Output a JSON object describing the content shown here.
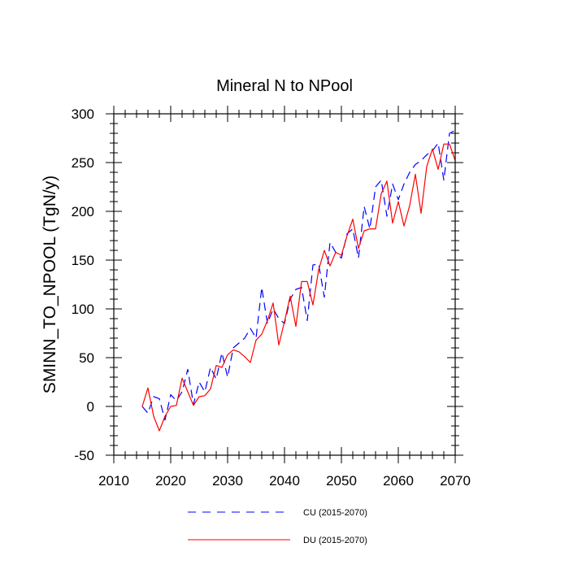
{
  "chart_data": {
    "type": "line",
    "title": "Mineral N to NPool",
    "xlabel": "",
    "ylabel": "SMINN_TO_NPOOL  (TgN/y)",
    "xlim": [
      2010,
      2070
    ],
    "ylim": [
      -50,
      300
    ],
    "xticks": [
      2010,
      2020,
      2030,
      2040,
      2050,
      2060,
      2070
    ],
    "yticks": [
      -50,
      0,
      50,
      100,
      150,
      200,
      250,
      300
    ],
    "grid": false,
    "legend": "bottom",
    "x": [
      2015,
      2016,
      2017,
      2018,
      2019,
      2020,
      2021,
      2022,
      2023,
      2024,
      2025,
      2026,
      2027,
      2028,
      2029,
      2030,
      2031,
      2032,
      2033,
      2034,
      2035,
      2036,
      2037,
      2038,
      2039,
      2040,
      2041,
      2042,
      2043,
      2044,
      2045,
      2046,
      2047,
      2048,
      2049,
      2050,
      2051,
      2052,
      2053,
      2054,
      2055,
      2056,
      2057,
      2058,
      2059,
      2060,
      2061,
      2062,
      2063,
      2064,
      2065,
      2066,
      2067,
      2068,
      2069,
      2070
    ],
    "series": [
      {
        "name": "CU (2015-2070)",
        "color": "#0000ff",
        "dash": "dashed",
        "values": [
          0,
          -7,
          10,
          8,
          -14,
          12,
          6,
          15,
          38,
          2,
          25,
          15,
          40,
          28,
          55,
          30,
          60,
          65,
          70,
          80,
          70,
          122,
          85,
          100,
          90,
          85,
          110,
          120,
          122,
          88,
          145,
          146,
          112,
          168,
          158,
          152,
          177,
          182,
          152,
          205,
          182,
          225,
          232,
          195,
          228,
          212,
          228,
          240,
          248,
          252,
          258,
          262,
          270,
          232,
          280,
          283
        ]
      },
      {
        "name": "DU (2015-2070)",
        "color": "#ff0000",
        "dash": "solid",
        "values": [
          0,
          19,
          -10,
          -25,
          -10,
          0,
          1,
          29,
          15,
          1,
          10,
          11,
          18,
          42,
          40,
          53,
          58,
          56,
          51,
          45,
          68,
          74,
          88,
          106,
          63,
          87,
          113,
          82,
          128,
          128,
          104,
          140,
          160,
          144,
          158,
          155,
          175,
          192,
          162,
          180,
          182,
          182,
          218,
          231,
          188,
          210,
          185,
          206,
          238,
          198,
          246,
          264,
          243,
          269,
          269,
          252
        ]
      }
    ]
  }
}
